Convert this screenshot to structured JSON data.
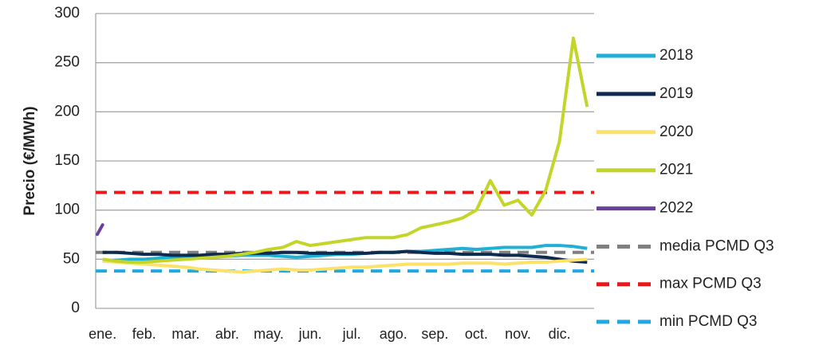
{
  "chart_data": {
    "type": "line",
    "y_label": "Precio (€/MWh)",
    "categories": [
      "ene.",
      null,
      null,
      "feb.",
      null,
      null,
      "mar.",
      null,
      null,
      "abr.",
      null,
      null,
      "may.",
      null,
      null,
      "jun.",
      null,
      null,
      "jul.",
      null,
      null,
      "ago.",
      null,
      null,
      "sep.",
      null,
      null,
      "oct.",
      null,
      null,
      "nov.",
      null,
      null,
      "dic.",
      null,
      null
    ],
    "ylim": [
      0,
      300
    ],
    "yticks": [
      0,
      50,
      100,
      150,
      200,
      250,
      300
    ],
    "grid": true,
    "series": [
      {
        "name": "2018",
        "color": "#1fb0d6",
        "values": [
          48,
          49,
          50,
          50,
          51,
          52,
          52,
          52,
          53,
          53,
          54,
          54,
          54,
          53,
          52,
          53,
          54,
          55,
          55,
          56,
          57,
          57,
          58,
          58,
          59,
          60,
          61,
          60,
          61,
          62,
          62,
          62,
          64,
          64,
          63,
          61
        ]
      },
      {
        "name": "2019",
        "color": "#0e2a4f",
        "values": [
          57,
          57,
          56,
          55,
          55,
          54,
          54,
          54,
          55,
          55,
          56,
          56,
          56,
          57,
          57,
          56,
          56,
          56,
          56,
          56,
          57,
          57,
          58,
          57,
          56,
          56,
          55,
          55,
          55,
          54,
          54,
          53,
          52,
          50,
          48,
          47
        ]
      },
      {
        "name": "2020",
        "color": "#fde26a",
        "values": [
          48,
          47,
          46,
          45,
          44,
          43,
          42,
          40,
          39,
          38,
          37,
          38,
          39,
          40,
          39,
          39,
          40,
          41,
          42,
          42,
          43,
          44,
          45,
          45,
          45,
          45,
          46,
          46,
          46,
          45,
          46,
          47,
          47,
          48,
          49,
          50
        ]
      },
      {
        "name": "2021",
        "color": "#c4d52a",
        "values": [
          50,
          48,
          47,
          47,
          48,
          49,
          50,
          51,
          52,
          53,
          55,
          57,
          60,
          62,
          68,
          64,
          66,
          68,
          70,
          72,
          72,
          72,
          75,
          82,
          85,
          88,
          92,
          100,
          130,
          105,
          110,
          95,
          120,
          170,
          275,
          205
        ]
      },
      {
        "name": "2022",
        "color": "#6b3fa0",
        "values": [
          85,
          null,
          null,
          null,
          null,
          null,
          null,
          null,
          null,
          null,
          null,
          null,
          null,
          null,
          null,
          null,
          null,
          null,
          null,
          null,
          null,
          null,
          null,
          null,
          null,
          null,
          null,
          null,
          null,
          null,
          null,
          null,
          null,
          null,
          null,
          null
        ]
      }
    ],
    "reference_lines": [
      {
        "name": "media PCMD Q3",
        "value": 57,
        "color": "#808080"
      },
      {
        "name": "max PCMD Q3",
        "value": 118,
        "color": "#e8191b"
      },
      {
        "name": "min PCMD Q3",
        "value": 38,
        "color": "#1ca9e6"
      }
    ]
  }
}
